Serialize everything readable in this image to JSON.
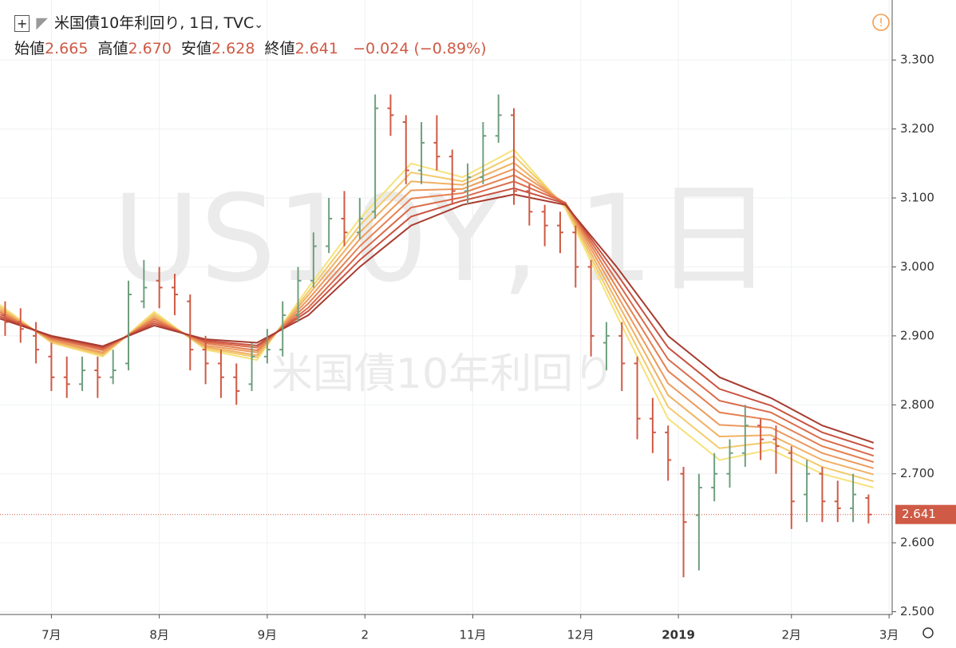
{
  "header": {
    "symbol": "米国債10年利回り, 1日, TVC",
    "labels": [
      "始値",
      "高値",
      "安値",
      "終値"
    ],
    "values": [
      "2.665",
      "2.670",
      "2.628",
      "2.641"
    ],
    "change": "−0.024 (−0.89%)"
  },
  "watermark": {
    "main": "US10Y, 1日",
    "sub": "米国債10年利回り"
  },
  "chart_data": {
    "type": "ohlc",
    "grid": true,
    "up_color": "#6f9f7e",
    "down_color": "#cf5a45",
    "xlim": [
      0,
      173.6
    ],
    "xticks": [
      {
        "value": 10,
        "label": "7月"
      },
      {
        "value": 31,
        "label": "8月"
      },
      {
        "value": 52,
        "label": "9月"
      },
      {
        "value": 71,
        "label": "2"
      },
      {
        "value": 92,
        "label": "11月"
      },
      {
        "value": 113,
        "label": "12月"
      },
      {
        "value": 132,
        "label": "2019"
      },
      {
        "value": 154,
        "label": "2月"
      },
      {
        "value": 173,
        "label": "3月"
      }
    ],
    "ylim": [
      2.496,
      3.387
    ],
    "yticks": [
      {
        "value": 2.5,
        "label": "2.500"
      },
      {
        "value": 2.6,
        "label": "2.600"
      },
      {
        "value": 2.7,
        "label": "2.700"
      },
      {
        "value": 2.8,
        "label": "2.800"
      },
      {
        "value": 2.9,
        "label": "2.900"
      },
      {
        "value": 3.0,
        "label": "3.000"
      },
      {
        "value": 3.1,
        "label": "3.100"
      },
      {
        "value": 3.2,
        "label": "3.200"
      },
      {
        "value": 3.3,
        "label": "3.300"
      }
    ],
    "last_price": {
      "value": 2.641,
      "label": "2.641"
    },
    "x": [
      1,
      4,
      7,
      10,
      13,
      16,
      19,
      22,
      25,
      28,
      31,
      34,
      37,
      40,
      43,
      46,
      49,
      52,
      55,
      58,
      61,
      64,
      67,
      70,
      73,
      76,
      79,
      82,
      85,
      88,
      91,
      94,
      97,
      100,
      103,
      106,
      109,
      112,
      115,
      118,
      121,
      124,
      127,
      130,
      133,
      136,
      139,
      142,
      145,
      148,
      151,
      154,
      157,
      160,
      163,
      166,
      169
    ],
    "open": [
      2.93,
      2.92,
      2.9,
      2.87,
      2.84,
      2.83,
      2.85,
      2.84,
      2.86,
      2.95,
      2.98,
      2.97,
      2.95,
      2.88,
      2.86,
      2.84,
      2.83,
      2.87,
      2.88,
      2.93,
      2.98,
      3.03,
      3.07,
      3.05,
      3.08,
      3.23,
      3.21,
      3.14,
      3.18,
      3.16,
      3.11,
      3.13,
      3.19,
      3.22,
      3.11,
      3.08,
      3.06,
      3.05,
      3.0,
      2.89,
      2.9,
      2.86,
      2.78,
      2.76,
      2.7,
      2.64,
      2.68,
      2.7,
      2.73,
      2.77,
      2.75,
      2.73,
      2.67,
      2.7,
      2.66,
      2.65,
      2.665
    ],
    "high": [
      2.95,
      2.94,
      2.92,
      2.89,
      2.87,
      2.87,
      2.87,
      2.88,
      2.98,
      3.01,
      3.0,
      2.99,
      2.96,
      2.9,
      2.88,
      2.86,
      2.89,
      2.91,
      2.95,
      3.0,
      3.05,
      3.1,
      3.11,
      3.1,
      3.25,
      3.25,
      3.22,
      3.21,
      3.22,
      3.17,
      3.15,
      3.21,
      3.25,
      3.23,
      3.12,
      3.09,
      3.08,
      3.06,
      3.01,
      2.92,
      2.92,
      2.87,
      2.81,
      2.77,
      2.71,
      2.7,
      2.73,
      2.75,
      2.8,
      2.78,
      2.77,
      2.74,
      2.72,
      2.71,
      2.69,
      2.7,
      2.67
    ],
    "low": [
      2.9,
      2.89,
      2.86,
      2.82,
      2.81,
      2.82,
      2.81,
      2.83,
      2.85,
      2.94,
      2.94,
      2.93,
      2.85,
      2.83,
      2.81,
      2.8,
      2.82,
      2.86,
      2.87,
      2.92,
      2.97,
      3.02,
      3.03,
      3.04,
      3.07,
      3.19,
      3.12,
      3.12,
      3.14,
      3.09,
      3.09,
      3.12,
      3.18,
      3.09,
      3.06,
      3.03,
      3.02,
      2.97,
      2.87,
      2.85,
      2.82,
      2.75,
      2.73,
      2.69,
      2.55,
      2.56,
      2.66,
      2.68,
      2.71,
      2.72,
      2.7,
      2.62,
      2.63,
      2.63,
      2.63,
      2.63,
      2.628
    ],
    "close": [
      2.92,
      2.91,
      2.88,
      2.84,
      2.83,
      2.85,
      2.84,
      2.85,
      2.96,
      2.97,
      2.97,
      2.96,
      2.88,
      2.86,
      2.84,
      2.82,
      2.87,
      2.88,
      2.93,
      2.98,
      3.03,
      3.07,
      3.05,
      3.07,
      3.23,
      3.22,
      3.14,
      3.18,
      3.16,
      3.11,
      3.13,
      3.19,
      3.22,
      3.11,
      3.08,
      3.06,
      3.05,
      3.0,
      2.9,
      2.9,
      2.86,
      2.78,
      2.76,
      2.72,
      2.63,
      2.68,
      2.7,
      2.73,
      2.77,
      2.75,
      2.74,
      2.66,
      2.7,
      2.66,
      2.65,
      2.67,
      2.641
    ],
    "ma_x": [
      0,
      10,
      20,
      30,
      40,
      50,
      60,
      70,
      80,
      90,
      100,
      110,
      120,
      130,
      140,
      150,
      160,
      170
    ],
    "ma_series": [
      {
        "color": "#f6e27c",
        "values": [
          2.945,
          2.89,
          2.87,
          2.935,
          2.88,
          2.865,
          2.97,
          3.07,
          3.15,
          3.13,
          3.17,
          3.085,
          2.93,
          2.78,
          2.72,
          2.735,
          2.7,
          2.68
        ]
      },
      {
        "color": "#f3ca6c",
        "values": [
          2.942,
          2.891,
          2.872,
          2.932,
          2.882,
          2.869,
          2.964,
          3.06,
          3.137,
          3.124,
          3.161,
          3.088,
          2.94,
          2.797,
          2.737,
          2.746,
          2.71,
          2.689
        ]
      },
      {
        "color": "#f0b163",
        "values": [
          2.939,
          2.893,
          2.874,
          2.929,
          2.884,
          2.872,
          2.959,
          3.05,
          3.124,
          3.119,
          3.151,
          3.09,
          2.95,
          2.814,
          2.754,
          2.756,
          2.72,
          2.699
        ]
      },
      {
        "color": "#ec995b",
        "values": [
          2.936,
          2.894,
          2.876,
          2.926,
          2.886,
          2.876,
          2.953,
          3.04,
          3.111,
          3.113,
          3.142,
          3.092,
          2.96,
          2.831,
          2.771,
          2.767,
          2.73,
          2.708
        ]
      },
      {
        "color": "#e58152",
        "values": [
          2.934,
          2.896,
          2.879,
          2.924,
          2.889,
          2.879,
          2.947,
          3.03,
          3.099,
          3.107,
          3.133,
          3.093,
          2.97,
          2.849,
          2.789,
          2.778,
          2.74,
          2.717
        ]
      },
      {
        "color": "#da6a4a",
        "values": [
          2.931,
          2.897,
          2.881,
          2.921,
          2.891,
          2.883,
          2.941,
          3.02,
          3.086,
          3.101,
          3.124,
          3.093,
          2.98,
          2.866,
          2.806,
          2.789,
          2.75,
          2.726
        ]
      },
      {
        "color": "#c95240",
        "values": [
          2.928,
          2.899,
          2.883,
          2.918,
          2.893,
          2.886,
          2.936,
          3.01,
          3.073,
          3.096,
          3.114,
          3.092,
          2.99,
          2.883,
          2.823,
          2.799,
          2.76,
          2.736
        ]
      },
      {
        "color": "#a83b2f",
        "values": [
          2.925,
          2.9,
          2.885,
          2.915,
          2.895,
          2.89,
          2.93,
          3.0,
          3.06,
          3.09,
          3.105,
          3.09,
          3.0,
          2.9,
          2.84,
          2.81,
          2.77,
          2.745
        ]
      }
    ]
  }
}
